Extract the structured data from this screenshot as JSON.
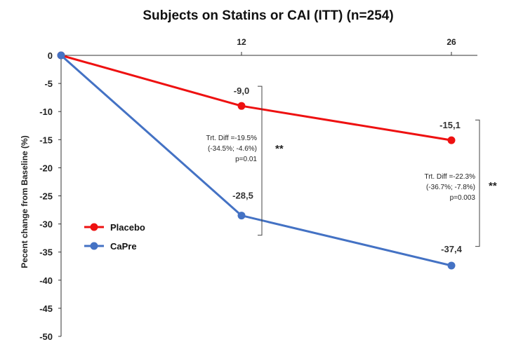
{
  "chart_data": {
    "type": "line",
    "title": "Subjects on Statins or CAI (ITT) (n=254)",
    "ylabel": "Pecent change  from Baseline (%)",
    "xlabel": "",
    "x": [
      0,
      12,
      26
    ],
    "x_tick_labels": [
      "12",
      "26"
    ],
    "ylim": [
      -50,
      0
    ],
    "y_ticks": [
      0,
      -5,
      -10,
      -15,
      -20,
      -25,
      -30,
      -35,
      -40,
      -45,
      -50
    ],
    "grid": false,
    "legend_position": "lower-left",
    "series": [
      {
        "name": "Placebo",
        "color": "#ee1111",
        "values": [
          0,
          -9.0,
          -15.1
        ],
        "labels": [
          "",
          "-9,0",
          "-15,1"
        ]
      },
      {
        "name": "CaPre",
        "color": "#4472c4",
        "values": [
          0,
          -28.5,
          -37.4
        ],
        "labels": [
          "",
          "-28,5",
          "-37,4"
        ]
      }
    ],
    "annotations": [
      {
        "x": 12,
        "lines": [
          "Trt. Diff =-19.5%",
          "(-34.5%; -4.6%)",
          "p=0.01"
        ],
        "stars": "**",
        "bracket_y": [
          -5.5,
          -32
        ]
      },
      {
        "x": 26,
        "lines": [
          "Trt. Diff =-22.3%",
          "(-36.7%; -7.8%)",
          "p=0.003"
        ],
        "stars": "**",
        "bracket_y": [
          -11.5,
          -34
        ]
      }
    ]
  }
}
